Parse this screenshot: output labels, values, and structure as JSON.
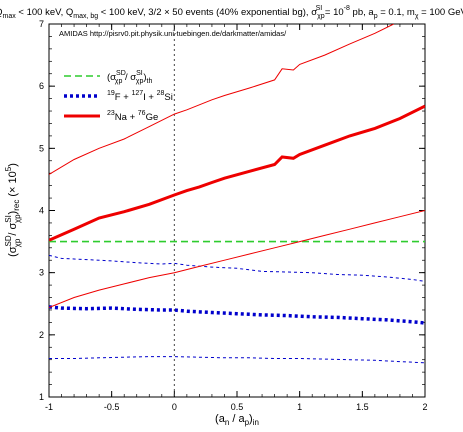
{
  "chart_data": {
    "type": "line",
    "title_parts": {
      "a": "Q",
      "a_sub": "max",
      "b": " < 100 keV, Q",
      "b_sub": "max, bg",
      "c": " < 100 keV, 3/2 × 50 events (40% exponential bg), σ",
      "c_sub": "χp",
      "c_sup": "SI",
      "d": " = 10",
      "d_sup": "-8",
      "e": " pb, a",
      "e_sub": "p",
      "f": " = 0.1, m",
      "f_sub": "χ",
      "g": " = 100 GeV"
    },
    "annotation": "AMIDAS   http://pisrv0.pit.physik.uni-tuebingen.de/darkmatter/amidas/",
    "xlabel_parts": {
      "a": "(a",
      "a_sub": "n",
      "b": " / a",
      "b_sub": "p",
      "c": ")",
      "c_sub": "in"
    },
    "ylabel_parts": {
      "a": "(σ",
      "a_sup": "SD",
      "a_sub": "χp",
      "b": " / σ",
      "b_sup": "SI",
      "b_sub": "χp",
      "c": ")",
      "c_sub": "rec",
      "d": " (× 10",
      "d_sup": "5",
      "e": ")"
    },
    "xlim": [
      -1,
      2
    ],
    "ylim": [
      1,
      7
    ],
    "xticks": [
      -1,
      -0.5,
      0,
      0.5,
      1,
      1.5,
      2
    ],
    "xtick_labels": [
      "-1",
      "-0.5",
      "0",
      "0.5",
      "1",
      "1.5",
      "2"
    ],
    "yticks": [
      1,
      2,
      3,
      4,
      5,
      6,
      7
    ],
    "ytick_labels": [
      "1",
      "2",
      "3",
      "4",
      "5",
      "6",
      "7"
    ],
    "vline_x": 0,
    "grid": false,
    "legend_position": "top-left",
    "legend": [
      {
        "label_parts": {
          "a": "(σ",
          "a_sup": "SD",
          "a_sub": "χp",
          "b": " / σ",
          "b_sup": "SI",
          "b_sub": "χp",
          "c": ")",
          "c_sub": "th"
        },
        "color": "#2ecc2e",
        "style": "dashed"
      },
      {
        "label_parts": {
          "a": "",
          "a_sup": "19",
          "b": "F + ",
          "b_sup": "127",
          "c": "I + ",
          "c_sup": "28",
          "d": "Si"
        },
        "color": "#0000cc",
        "style": "dotted-thick"
      },
      {
        "label_parts": {
          "a": "",
          "a_sup": "23",
          "b": "Na + ",
          "b_sup": "76",
          "c": "Ge"
        },
        "color": "#ee0000",
        "style": "solid-thick"
      }
    ],
    "series": [
      {
        "key": "theory",
        "color": "#2ecc2e",
        "style": "dashed",
        "x": [
          -1,
          2
        ],
        "y": [
          3.5,
          3.5
        ]
      },
      {
        "key": "fisi_upper",
        "color": "#0000cc",
        "style": "thin-dashed",
        "x": [
          -1,
          -0.9,
          -0.7,
          -0.5,
          -0.3,
          -0.1,
          0,
          0.1,
          0.3,
          0.5,
          0.7,
          0.9,
          1.1,
          1.3,
          1.5,
          1.7,
          1.9,
          2
        ],
        "y": [
          3.28,
          3.23,
          3.21,
          3.19,
          3.16,
          3.14,
          3.15,
          3.12,
          3.09,
          3.07,
          3.02,
          3.01,
          3.0,
          2.97,
          2.96,
          2.93,
          2.89,
          2.86
        ]
      },
      {
        "key": "fisi_median",
        "color": "#0000cc",
        "style": "dotted-thick",
        "x": [
          -1,
          -0.9,
          -0.7,
          -0.5,
          -0.3,
          -0.1,
          0,
          0.1,
          0.3,
          0.5,
          0.7,
          0.9,
          1.1,
          1.3,
          1.5,
          1.7,
          1.9,
          2
        ],
        "y": [
          2.45,
          2.43,
          2.42,
          2.43,
          2.41,
          2.4,
          2.4,
          2.38,
          2.36,
          2.34,
          2.32,
          2.31,
          2.29,
          2.28,
          2.26,
          2.24,
          2.21,
          2.19
        ]
      },
      {
        "key": "fisi_lower",
        "color": "#0000cc",
        "style": "thin-dashed",
        "x": [
          -1,
          -0.8,
          -0.6,
          -0.4,
          -0.2,
          0,
          0.2,
          0.4,
          0.6,
          0.8,
          1.0,
          1.2,
          1.4,
          1.6,
          1.8,
          2
        ],
        "y": [
          1.62,
          1.62,
          1.63,
          1.64,
          1.65,
          1.65,
          1.64,
          1.63,
          1.63,
          1.62,
          1.62,
          1.61,
          1.6,
          1.59,
          1.57,
          1.55
        ]
      },
      {
        "key": "nage_upper",
        "color": "#ee0000",
        "style": "thin-solid",
        "x": [
          -1,
          -0.8,
          -0.6,
          -0.4,
          -0.2,
          0,
          0.1,
          0.2,
          0.3,
          0.4,
          0.6,
          0.8,
          0.86,
          0.95,
          1.0,
          1.2,
          1.4,
          1.6,
          1.75
        ],
        "y": [
          4.58,
          4.82,
          5.0,
          5.15,
          5.35,
          5.55,
          5.62,
          5.7,
          5.78,
          5.85,
          5.97,
          6.1,
          6.28,
          6.26,
          6.35,
          6.5,
          6.68,
          6.85,
          7.0
        ]
      },
      {
        "key": "nage_median",
        "color": "#ee0000",
        "style": "solid-thick",
        "x": [
          -1,
          -0.8,
          -0.6,
          -0.4,
          -0.2,
          0,
          0.1,
          0.2,
          0.3,
          0.4,
          0.6,
          0.8,
          0.86,
          0.95,
          1.0,
          1.2,
          1.4,
          1.6,
          1.8,
          2
        ],
        "y": [
          3.52,
          3.7,
          3.88,
          3.98,
          4.1,
          4.25,
          4.32,
          4.38,
          4.45,
          4.52,
          4.63,
          4.74,
          4.86,
          4.84,
          4.9,
          5.05,
          5.2,
          5.32,
          5.48,
          5.68
        ]
      },
      {
        "key": "nage_lower",
        "color": "#ee0000",
        "style": "thin-solid",
        "x": [
          -1,
          -0.8,
          -0.6,
          -0.4,
          -0.2,
          0,
          0.2,
          0.4,
          0.6,
          0.8,
          1.0,
          1.2,
          1.4,
          1.6,
          1.8,
          2
        ],
        "y": [
          2.44,
          2.6,
          2.72,
          2.82,
          2.92,
          3.0,
          3.1,
          3.2,
          3.3,
          3.4,
          3.5,
          3.6,
          3.7,
          3.8,
          3.9,
          4.0
        ]
      }
    ]
  }
}
